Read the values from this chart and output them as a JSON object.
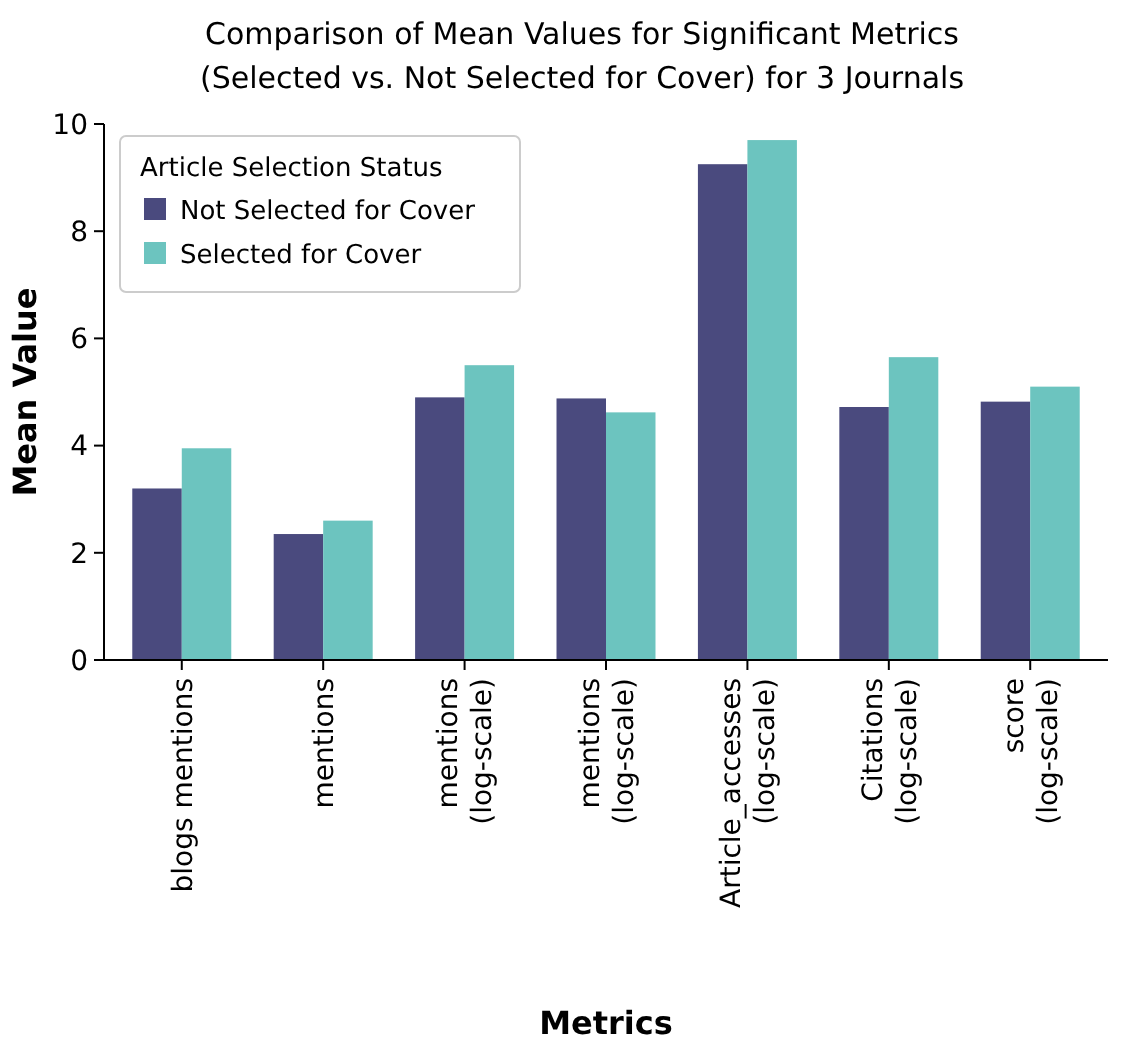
{
  "chart_data": {
    "type": "bar",
    "title": "Comparison of Mean Values for Significant Metrics (Selected vs. Not Selected for Cover) for 3 Journals",
    "xlabel": "Metrics",
    "ylabel": "Mean Value",
    "legend_title": "Article Selection Status",
    "categories": [
      "blogs mentions",
      "mentions",
      "mentions (log-scale)",
      "mentions (log-scale)",
      "Article_accesses (log-scale)",
      "Citations (log-scale)",
      "score (log-scale)"
    ],
    "series": [
      {
        "name": "Not Selected for Cover",
        "color": "#4a4a7e",
        "values": [
          3.2,
          2.35,
          4.9,
          4.88,
          9.25,
          4.72,
          4.82
        ]
      },
      {
        "name": "Selected for Cover",
        "color": "#6cc4bf",
        "values": [
          3.95,
          2.6,
          5.5,
          4.62,
          9.7,
          5.65,
          5.1
        ]
      }
    ],
    "ylim": [
      0,
      10
    ],
    "yticks": [
      0,
      2,
      4,
      6,
      8,
      10
    ],
    "grid": false,
    "legend": "top left"
  }
}
